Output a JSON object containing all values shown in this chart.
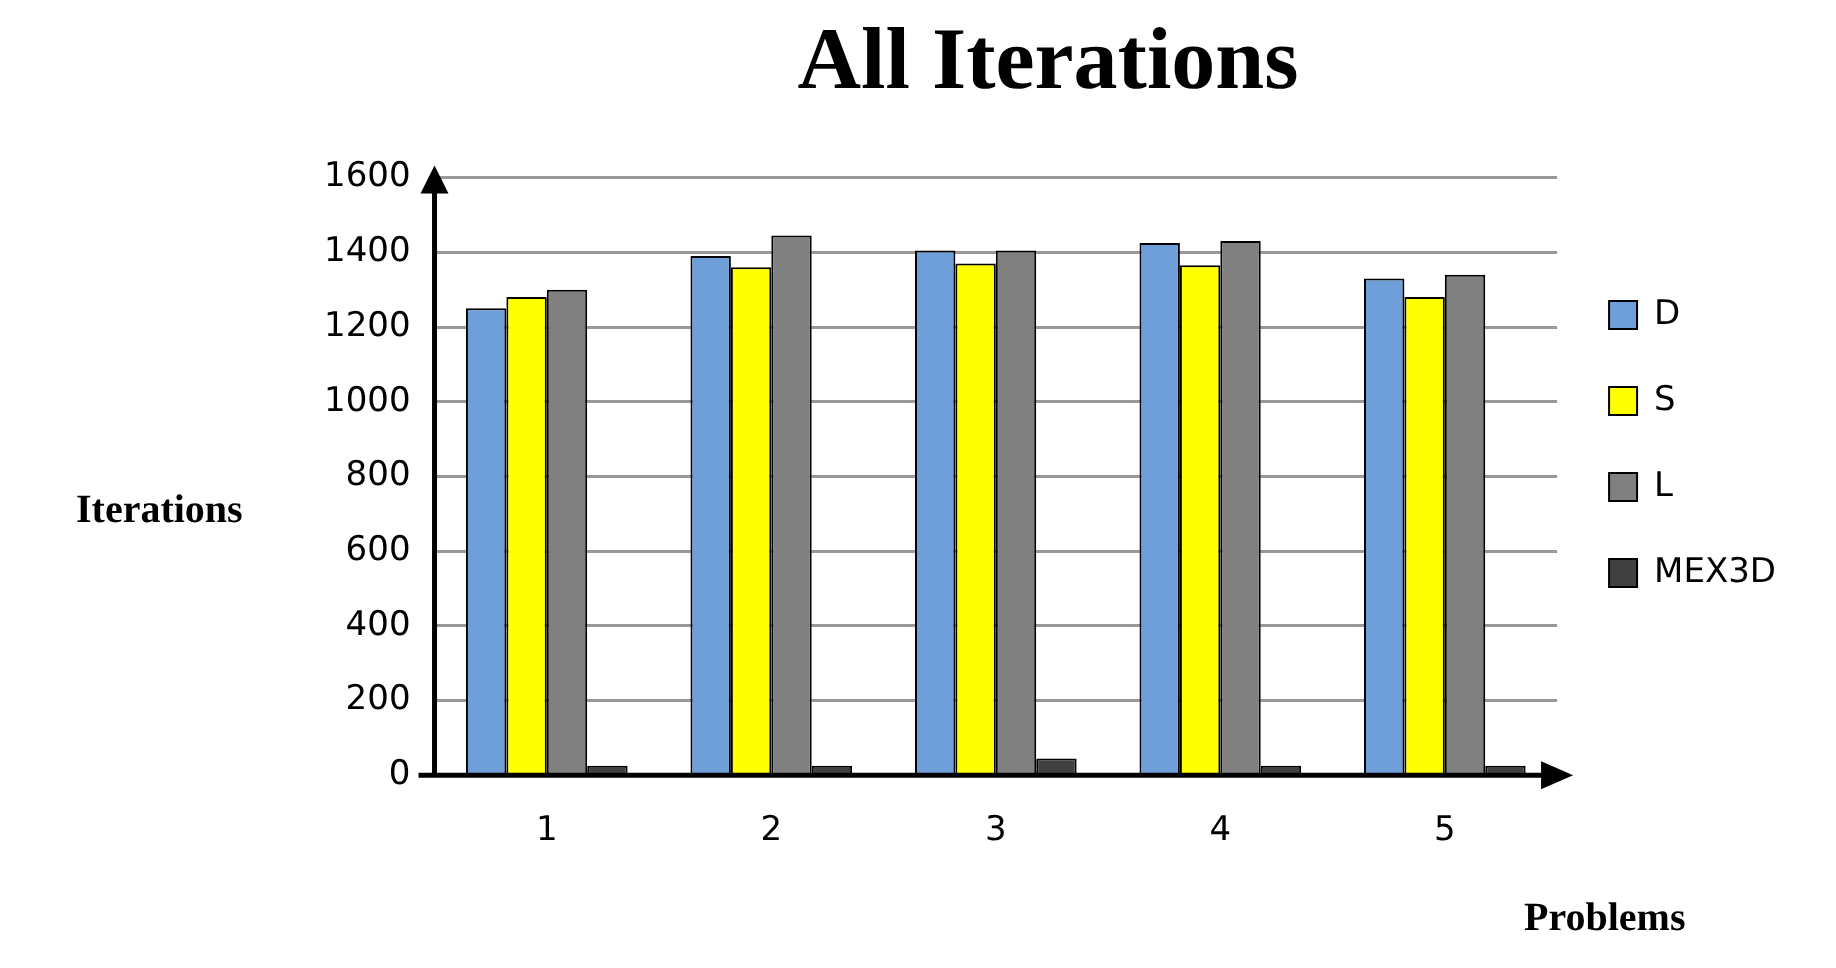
{
  "chart_data": {
    "type": "bar",
    "title": "All Iterations",
    "xlabel": "Problems",
    "ylabel": "Iterations",
    "categories": [
      "1",
      "2",
      "3",
      "4",
      "5"
    ],
    "series": [
      {
        "name": "D",
        "color": "#6f9fd8",
        "values": [
          1250,
          1390,
          1405,
          1425,
          1330
        ]
      },
      {
        "name": "S",
        "color": "#ffff00",
        "values": [
          1280,
          1360,
          1370,
          1365,
          1280
        ]
      },
      {
        "name": "L",
        "color": "#808080",
        "values": [
          1300,
          1445,
          1405,
          1430,
          1340
        ]
      },
      {
        "name": "MEX3D",
        "color": "#404040",
        "values": [
          25,
          25,
          45,
          25,
          25
        ]
      }
    ],
    "ylim": [
      0,
      1600
    ],
    "yticks": [
      0,
      200,
      400,
      600,
      800,
      1000,
      1200,
      1400,
      1600
    ],
    "grid": "y",
    "legend": "right"
  }
}
